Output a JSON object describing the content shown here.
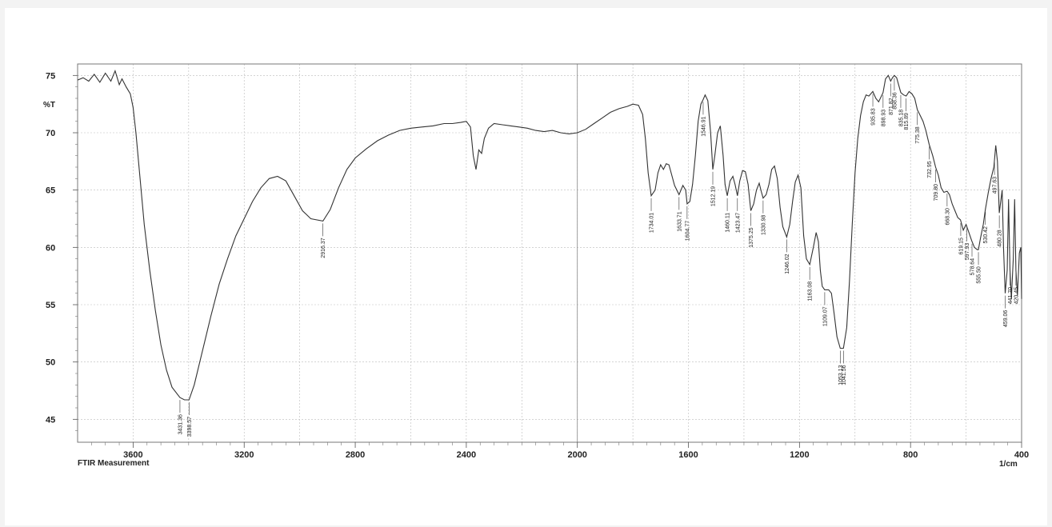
{
  "chart_data": {
    "type": "line",
    "title": "",
    "xlabel": "1/cm",
    "ylabel": "%T",
    "footer": "FTIR Measurement",
    "xlim": [
      3800,
      400
    ],
    "ylim": [
      43,
      76
    ],
    "x_ticks": [
      "3600",
      "3200",
      "2800",
      "2400",
      "2000",
      "1600",
      "1200",
      "800",
      "400"
    ],
    "y_ticks": [
      "75",
      "70",
      "65",
      "60",
      "55",
      "50",
      "45"
    ],
    "grid": true,
    "series": [
      {
        "name": "",
        "points": [
          [
            3800,
            74.6
          ],
          [
            3780,
            74.8
          ],
          [
            3760,
            74.5
          ],
          [
            3740,
            75.1
          ],
          [
            3720,
            74.4
          ],
          [
            3700,
            75.2
          ],
          [
            3680,
            74.5
          ],
          [
            3665,
            75.4
          ],
          [
            3650,
            74.2
          ],
          [
            3640,
            74.7
          ],
          [
            3625,
            74.0
          ],
          [
            3610,
            73.4
          ],
          [
            3600,
            72.2
          ],
          [
            3590,
            70.0
          ],
          [
            3575,
            66.0
          ],
          [
            3560,
            62.0
          ],
          [
            3540,
            58.0
          ],
          [
            3520,
            54.5
          ],
          [
            3500,
            51.5
          ],
          [
            3480,
            49.3
          ],
          [
            3460,
            47.8
          ],
          [
            3431.36,
            46.9
          ],
          [
            3415,
            46.7
          ],
          [
            3398.57,
            46.7
          ],
          [
            3380,
            48.0
          ],
          [
            3350,
            51.0
          ],
          [
            3320,
            54.0
          ],
          [
            3290,
            56.8
          ],
          [
            3260,
            59.0
          ],
          [
            3230,
            61.0
          ],
          [
            3200,
            62.5
          ],
          [
            3170,
            64.0
          ],
          [
            3140,
            65.2
          ],
          [
            3110,
            66.0
          ],
          [
            3080,
            66.2
          ],
          [
            3050,
            65.8
          ],
          [
            3020,
            64.5
          ],
          [
            2990,
            63.2
          ],
          [
            2960,
            62.5
          ],
          [
            2916.37,
            62.3
          ],
          [
            2890,
            63.3
          ],
          [
            2860,
            65.2
          ],
          [
            2830,
            66.8
          ],
          [
            2800,
            67.8
          ],
          [
            2760,
            68.6
          ],
          [
            2720,
            69.3
          ],
          [
            2680,
            69.8
          ],
          [
            2640,
            70.2
          ],
          [
            2600,
            70.4
          ],
          [
            2560,
            70.5
          ],
          [
            2520,
            70.6
          ],
          [
            2480,
            70.8
          ],
          [
            2450,
            70.8
          ],
          [
            2420,
            70.9
          ],
          [
            2400,
            71.0
          ],
          [
            2385,
            70.5
          ],
          [
            2375,
            68.0
          ],
          [
            2365,
            66.8
          ],
          [
            2355,
            68.5
          ],
          [
            2345,
            68.2
          ],
          [
            2335,
            69.5
          ],
          [
            2320,
            70.4
          ],
          [
            2300,
            70.8
          ],
          [
            2270,
            70.7
          ],
          [
            2240,
            70.6
          ],
          [
            2210,
            70.5
          ],
          [
            2180,
            70.4
          ],
          [
            2150,
            70.2
          ],
          [
            2120,
            70.1
          ],
          [
            2090,
            70.2
          ],
          [
            2060,
            70.0
          ],
          [
            2030,
            69.9
          ],
          [
            2000,
            70.0
          ],
          [
            1970,
            70.3
          ],
          [
            1940,
            70.8
          ],
          [
            1910,
            71.3
          ],
          [
            1880,
            71.8
          ],
          [
            1850,
            72.1
          ],
          [
            1820,
            72.3
          ],
          [
            1800,
            72.5
          ],
          [
            1780,
            72.4
          ],
          [
            1765,
            71.6
          ],
          [
            1755,
            69.5
          ],
          [
            1745,
            66.5
          ],
          [
            1734.01,
            64.5
          ],
          [
            1720,
            65.0
          ],
          [
            1710,
            66.5
          ],
          [
            1700,
            67.2
          ],
          [
            1690,
            66.8
          ],
          [
            1680,
            67.3
          ],
          [
            1670,
            67.2
          ],
          [
            1660,
            66.3
          ],
          [
            1650,
            65.4
          ],
          [
            1633.71,
            64.6
          ],
          [
            1620,
            65.4
          ],
          [
            1610,
            65.0
          ],
          [
            1604.77,
            63.8
          ],
          [
            1595,
            64.0
          ],
          [
            1585,
            65.5
          ],
          [
            1575,
            68.0
          ],
          [
            1565,
            71.0
          ],
          [
            1555,
            72.5
          ],
          [
            1546.91,
            72.9
          ],
          [
            1540,
            73.3
          ],
          [
            1530,
            72.8
          ],
          [
            1520,
            70.0
          ],
          [
            1512.19,
            66.8
          ],
          [
            1505,
            68.0
          ],
          [
            1495,
            70.0
          ],
          [
            1485,
            70.6
          ],
          [
            1475,
            68.0
          ],
          [
            1468,
            65.5
          ],
          [
            1460.11,
            64.5
          ],
          [
            1450,
            65.8
          ],
          [
            1440,
            66.2
          ],
          [
            1432,
            65.5
          ],
          [
            1423.47,
            64.5
          ],
          [
            1415,
            65.8
          ],
          [
            1405,
            66.7
          ],
          [
            1395,
            66.6
          ],
          [
            1385,
            65.5
          ],
          [
            1375.25,
            63.2
          ],
          [
            1365,
            63.8
          ],
          [
            1355,
            65.0
          ],
          [
            1345,
            65.6
          ],
          [
            1338,
            64.9
          ],
          [
            1330.98,
            64.3
          ],
          [
            1320,
            64.6
          ],
          [
            1310,
            65.5
          ],
          [
            1300,
            66.8
          ],
          [
            1290,
            67.1
          ],
          [
            1280,
            66.0
          ],
          [
            1270,
            63.5
          ],
          [
            1260,
            61.8
          ],
          [
            1246.02,
            60.9
          ],
          [
            1235,
            62.0
          ],
          [
            1225,
            64.0
          ],
          [
            1215,
            65.7
          ],
          [
            1205,
            66.3
          ],
          [
            1195,
            65.2
          ],
          [
            1185,
            61.0
          ],
          [
            1175,
            59.0
          ],
          [
            1163.08,
            58.5
          ],
          [
            1150,
            60.0
          ],
          [
            1140,
            61.3
          ],
          [
            1132,
            60.5
          ],
          [
            1125,
            58.0
          ],
          [
            1118,
            56.6
          ],
          [
            1109.07,
            56.3
          ],
          [
            1095,
            56.3
          ],
          [
            1085,
            56.0
          ],
          [
            1075,
            54.2
          ],
          [
            1065,
            52.2
          ],
          [
            1053.13,
            51.2
          ],
          [
            1041.56,
            51.2
          ],
          [
            1030,
            53.0
          ],
          [
            1020,
            57.0
          ],
          [
            1010,
            62.0
          ],
          [
            1000,
            66.5
          ],
          [
            990,
            69.5
          ],
          [
            980,
            71.5
          ],
          [
            970,
            72.7
          ],
          [
            960,
            73.3
          ],
          [
            950,
            73.2
          ],
          [
            935.83,
            73.6
          ],
          [
            925,
            73.0
          ],
          [
            915,
            72.7
          ],
          [
            898.93,
            73.5
          ],
          [
            890,
            74.7
          ],
          [
            880,
            75.0
          ],
          [
            871.82,
            74.5
          ],
          [
            865,
            74.8
          ],
          [
            858.36,
            75.0
          ],
          [
            850,
            74.8
          ],
          [
            835.18,
            73.5
          ],
          [
            825,
            73.3
          ],
          [
            815.89,
            73.2
          ],
          [
            805,
            73.6
          ],
          [
            795,
            73.4
          ],
          [
            785,
            73.0
          ],
          [
            775.38,
            72.0
          ],
          [
            765,
            71.5
          ],
          [
            755,
            71.0
          ],
          [
            745,
            70.2
          ],
          [
            732.95,
            69.0
          ],
          [
            720,
            68.0
          ],
          [
            709.8,
            67.0
          ],
          [
            700,
            66.3
          ],
          [
            690,
            65.2
          ],
          [
            680,
            64.8
          ],
          [
            668.3,
            64.9
          ],
          [
            660,
            64.6
          ],
          [
            650,
            63.8
          ],
          [
            640,
            63.2
          ],
          [
            630,
            62.6
          ],
          [
            620,
            62.4
          ],
          [
            610,
            61.5
          ],
          [
            600,
            62.0
          ],
          [
            590,
            61.3
          ],
          [
            580,
            60.6
          ],
          [
            570,
            60.0
          ],
          [
            560,
            59.8
          ],
          [
            555.5,
            59.8
          ],
          [
            548,
            60.8
          ],
          [
            538,
            62.0
          ],
          [
            530.42,
            63.3
          ],
          [
            520,
            64.8
          ],
          [
            510,
            66.0
          ],
          [
            500,
            67.0
          ],
          [
            493,
            68.9
          ],
          [
            487,
            67.5
          ],
          [
            480.28,
            63.0
          ],
          [
            470,
            65.0
          ],
          [
            465,
            60.0
          ],
          [
            459.06,
            56.0
          ],
          [
            452,
            58.0
          ],
          [
            447,
            64.2
          ],
          [
            441.7,
            58.0
          ],
          [
            437,
            55.5
          ],
          [
            430,
            59.0
          ],
          [
            425,
            64.2
          ],
          [
            420.45,
            58.0
          ],
          [
            415,
            55.8
          ],
          [
            408,
            59.5
          ],
          [
            403,
            60.0
          ],
          [
            400,
            55.5
          ]
        ],
        "peaks": [
          {
            "x": 3431.36,
            "label": "3431.36"
          },
          {
            "x": 3398.57,
            "label": "3398.57"
          },
          {
            "x": 2916.37,
            "label": "2916.37"
          },
          {
            "x": 1734.01,
            "label": "1734.01"
          },
          {
            "x": 1633.71,
            "label": "1633.71"
          },
          {
            "x": 1604.77,
            "label": "1604.77"
          },
          {
            "x": 1546.91,
            "label": "1546.91"
          },
          {
            "x": 1512.19,
            "label": "1512.19"
          },
          {
            "x": 1460.11,
            "label": "1460.11"
          },
          {
            "x": 1423.47,
            "label": "1423.47"
          },
          {
            "x": 1375.25,
            "label": "1375.25"
          },
          {
            "x": 1330.98,
            "label": "1330.98"
          },
          {
            "x": 1246.02,
            "label": "1246.02"
          },
          {
            "x": 1163.08,
            "label": "1163.08"
          },
          {
            "x": 1109.07,
            "label": "1109.07"
          },
          {
            "x": 1053.13,
            "label": "1053.13"
          },
          {
            "x": 1041.56,
            "label": "1041.56"
          },
          {
            "x": 935.83,
            "label": "935.83"
          },
          {
            "x": 898.93,
            "label": "898.93"
          },
          {
            "x": 871.82,
            "label": "871.82"
          },
          {
            "x": 858.36,
            "label": "858.36"
          },
          {
            "x": 835.18,
            "label": "835.18"
          },
          {
            "x": 815.89,
            "label": "815.89"
          },
          {
            "x": 775.38,
            "label": "775.38"
          },
          {
            "x": 732.95,
            "label": "732.95"
          },
          {
            "x": 709.8,
            "label": "709.80"
          },
          {
            "x": 668.3,
            "label": "668.30"
          },
          {
            "x": 619.15,
            "label": "619.15"
          },
          {
            "x": 597.93,
            "label": "597.93"
          },
          {
            "x": 578.64,
            "label": "578.64"
          },
          {
            "x": 555.5,
            "label": "555.50"
          },
          {
            "x": 530.42,
            "label": "530.42"
          },
          {
            "x": 497.63,
            "label": "497.63"
          },
          {
            "x": 480.28,
            "label": "480.28"
          },
          {
            "x": 459.06,
            "label": "459.06"
          },
          {
            "x": 441.7,
            "label": "441.70"
          },
          {
            "x": 420.45,
            "label": "420.45"
          }
        ]
      }
    ]
  }
}
